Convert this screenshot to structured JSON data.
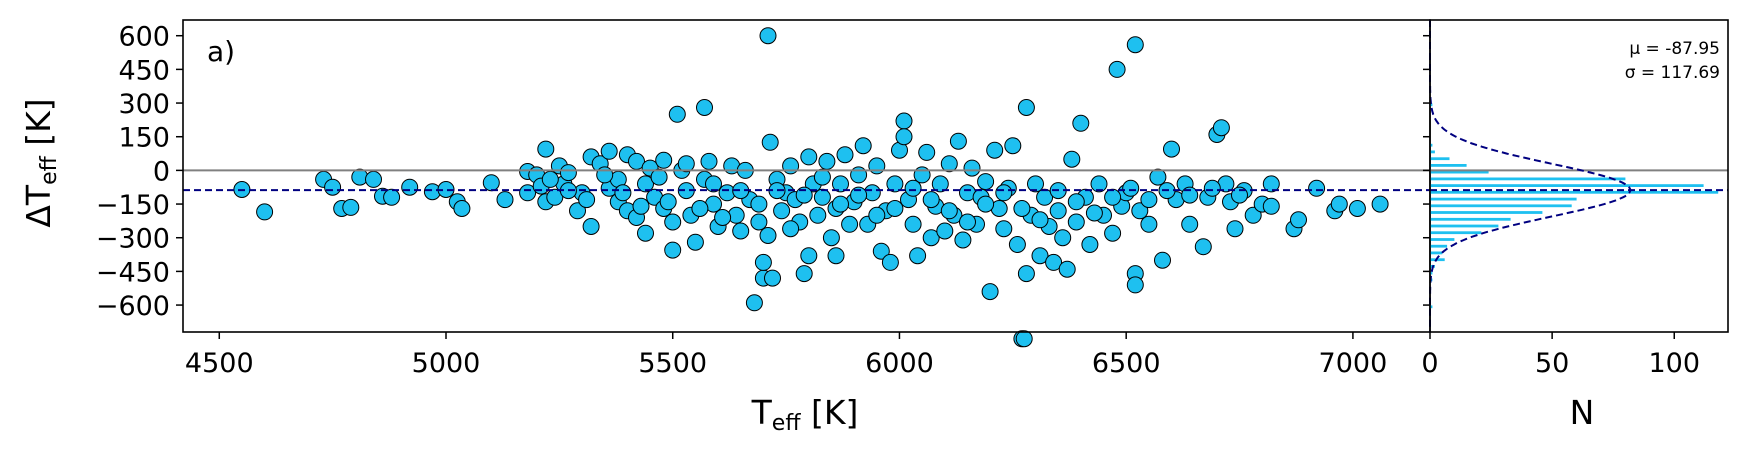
{
  "chart_data": [
    {
      "type": "scatter",
      "panel_label": "a)",
      "xlabel_main": "T",
      "xlabel_sub": "eff",
      "xlabel_unit": " [K]",
      "ylabel_main": "ΔT",
      "ylabel_sub": "eff",
      "ylabel_unit": " [K]",
      "xlim": [
        4420,
        7170
      ],
      "ylim": [
        -720,
        670
      ],
      "xticks": [
        4500,
        5000,
        5500,
        6000,
        6500,
        7000
      ],
      "xtick_labels": [
        "4500",
        "5000",
        "5500",
        "6000",
        "6500",
        "7000"
      ],
      "yticks": [
        -600,
        -450,
        -300,
        -150,
        0,
        150,
        300,
        450,
        600
      ],
      "ytick_labels": [
        "−600",
        "−450",
        "−300",
        "−150",
        "0",
        "150",
        "300",
        "450",
        "600"
      ],
      "reference_lines": [
        {
          "y": 0,
          "style": "solid",
          "color": "#808080"
        },
        {
          "y": -87.95,
          "style": "dashed",
          "color": "#000080"
        }
      ],
      "marker_color": "#1ec0f0",
      "grid": false,
      "points": [
        [
          4550,
          -85
        ],
        [
          4600,
          -185
        ],
        [
          4730,
          -40
        ],
        [
          4750,
          -75
        ],
        [
          4770,
          -170
        ],
        [
          4790,
          -165
        ],
        [
          4810,
          -30
        ],
        [
          4840,
          -40
        ],
        [
          4860,
          -115
        ],
        [
          4880,
          -120
        ],
        [
          4920,
          -75
        ],
        [
          4970,
          -95
        ],
        [
          5000,
          -85
        ],
        [
          5025,
          -140
        ],
        [
          5035,
          -170
        ],
        [
          5100,
          -55
        ],
        [
          5130,
          -130
        ],
        [
          5180,
          -5
        ],
        [
          5180,
          -100
        ],
        [
          5200,
          -20
        ],
        [
          5210,
          -70
        ],
        [
          5220,
          95
        ],
        [
          5220,
          -140
        ],
        [
          5240,
          -120
        ],
        [
          5250,
          20
        ],
        [
          5260,
          -60
        ],
        [
          5270,
          -10
        ],
        [
          5290,
          -180
        ],
        [
          5300,
          -100
        ],
        [
          5320,
          60
        ],
        [
          5320,
          -250
        ],
        [
          5340,
          30
        ],
        [
          5360,
          85
        ],
        [
          5360,
          -80
        ],
        [
          5380,
          -40
        ],
        [
          5380,
          -140
        ],
        [
          5400,
          70
        ],
        [
          5400,
          -180
        ],
        [
          5420,
          40
        ],
        [
          5420,
          -210
        ],
        [
          5440,
          -60
        ],
        [
          5440,
          -280
        ],
        [
          5450,
          10
        ],
        [
          5460,
          -120
        ],
        [
          5480,
          45
        ],
        [
          5480,
          -170
        ],
        [
          5500,
          -355
        ],
        [
          5500,
          -230
        ],
        [
          5510,
          250
        ],
        [
          5520,
          0
        ],
        [
          5530,
          -90
        ],
        [
          5540,
          -200
        ],
        [
          5550,
          -320
        ],
        [
          5570,
          280
        ],
        [
          5570,
          -40
        ],
        [
          5580,
          40
        ],
        [
          5590,
          -150
        ],
        [
          5600,
          -250
        ],
        [
          5620,
          -100
        ],
        [
          5630,
          20
        ],
        [
          5640,
          -200
        ],
        [
          5650,
          -270
        ],
        [
          5660,
          0
        ],
        [
          5670,
          -130
        ],
        [
          5680,
          -590
        ],
        [
          5690,
          -230
        ],
        [
          5700,
          -480
        ],
        [
          5700,
          -410
        ],
        [
          5710,
          600
        ],
        [
          5710,
          -290
        ],
        [
          5715,
          125
        ],
        [
          5720,
          -480
        ],
        [
          5730,
          -40
        ],
        [
          5740,
          -180
        ],
        [
          5750,
          -100
        ],
        [
          5760,
          20
        ],
        [
          5770,
          -130
        ],
        [
          5780,
          -230
        ],
        [
          5790,
          -460
        ],
        [
          5800,
          -380
        ],
        [
          5800,
          60
        ],
        [
          5810,
          -60
        ],
        [
          5820,
          -200
        ],
        [
          5830,
          -120
        ],
        [
          5840,
          40
        ],
        [
          5850,
          -300
        ],
        [
          5860,
          -380
        ],
        [
          5860,
          -170
        ],
        [
          5870,
          -60
        ],
        [
          5880,
          70
        ],
        [
          5890,
          -240
        ],
        [
          5900,
          -140
        ],
        [
          5910,
          -20
        ],
        [
          5920,
          110
        ],
        [
          5930,
          -240
        ],
        [
          5940,
          -100
        ],
        [
          5950,
          20
        ],
        [
          5960,
          -360
        ],
        [
          5970,
          -180
        ],
        [
          5980,
          -410
        ],
        [
          5990,
          -60
        ],
        [
          6000,
          90
        ],
        [
          6010,
          220
        ],
        [
          6010,
          150
        ],
        [
          6020,
          -130
        ],
        [
          6030,
          -240
        ],
        [
          6040,
          -380
        ],
        [
          6050,
          -20
        ],
        [
          6060,
          80
        ],
        [
          6070,
          -300
        ],
        [
          6080,
          -160
        ],
        [
          6090,
          -60
        ],
        [
          6100,
          -270
        ],
        [
          6110,
          30
        ],
        [
          6120,
          -200
        ],
        [
          6130,
          130
        ],
        [
          6140,
          -310
        ],
        [
          6150,
          -100
        ],
        [
          6160,
          10
        ],
        [
          6170,
          -240
        ],
        [
          6180,
          -120
        ],
        [
          6190,
          -50
        ],
        [
          6200,
          -540
        ],
        [
          6210,
          90
        ],
        [
          6220,
          -170
        ],
        [
          6230,
          -260
        ],
        [
          6240,
          -80
        ],
        [
          6250,
          110
        ],
        [
          6260,
          -330
        ],
        [
          6270,
          -750
        ],
        [
          6275,
          -750
        ],
        [
          6280,
          280
        ],
        [
          6280,
          -460
        ],
        [
          6290,
          -200
        ],
        [
          6300,
          -60
        ],
        [
          6310,
          -380
        ],
        [
          6320,
          -120
        ],
        [
          6330,
          -250
        ],
        [
          6340,
          -410
        ],
        [
          6350,
          -180
        ],
        [
          6360,
          -300
        ],
        [
          6370,
          -440
        ],
        [
          6380,
          50
        ],
        [
          6390,
          -230
        ],
        [
          6400,
          210
        ],
        [
          6410,
          -120
        ],
        [
          6420,
          -330
        ],
        [
          6440,
          -60
        ],
        [
          6450,
          -200
        ],
        [
          6470,
          -280
        ],
        [
          6480,
          450
        ],
        [
          6490,
          -160
        ],
        [
          6500,
          -100
        ],
        [
          6520,
          560
        ],
        [
          6520,
          -460
        ],
        [
          6520,
          -510
        ],
        [
          6530,
          -180
        ],
        [
          6550,
          -240
        ],
        [
          6570,
          -30
        ],
        [
          6580,
          -400
        ],
        [
          6600,
          95
        ],
        [
          6610,
          -130
        ],
        [
          6630,
          -60
        ],
        [
          6640,
          -240
        ],
        [
          6670,
          -340
        ],
        [
          6680,
          -120
        ],
        [
          6700,
          160
        ],
        [
          6710,
          190
        ],
        [
          6720,
          -60
        ],
        [
          6730,
          -140
        ],
        [
          6740,
          -260
        ],
        [
          6760,
          -90
        ],
        [
          6780,
          -200
        ],
        [
          6800,
          -150
        ],
        [
          6820,
          -60
        ],
        [
          6820,
          -160
        ],
        [
          6870,
          -260
        ],
        [
          6880,
          -220
        ],
        [
          6920,
          -80
        ],
        [
          6960,
          -180
        ],
        [
          6970,
          -150
        ],
        [
          7010,
          -170
        ],
        [
          7060,
          -150
        ],
        [
          5230,
          -40
        ],
        [
          5270,
          -90
        ],
        [
          5310,
          -130
        ],
        [
          5350,
          -20
        ],
        [
          5390,
          -100
        ],
        [
          5430,
          -160
        ],
        [
          5470,
          -30
        ],
        [
          5490,
          -140
        ],
        [
          5530,
          30
        ],
        [
          5560,
          -170
        ],
        [
          5590,
          -60
        ],
        [
          5610,
          -210
        ],
        [
          5650,
          -90
        ],
        [
          5690,
          -150
        ],
        [
          5730,
          -90
        ],
        [
          5760,
          -260
        ],
        [
          5790,
          -110
        ],
        [
          5830,
          -30
        ],
        [
          5870,
          -150
        ],
        [
          5910,
          -110
        ],
        [
          5950,
          -200
        ],
        [
          5990,
          -170
        ],
        [
          6030,
          -80
        ],
        [
          6070,
          -130
        ],
        [
          6110,
          -180
        ],
        [
          6150,
          -230
        ],
        [
          6190,
          -150
        ],
        [
          6230,
          -100
        ],
        [
          6270,
          -170
        ],
        [
          6310,
          -220
        ],
        [
          6350,
          -90
        ],
        [
          6390,
          -140
        ],
        [
          6430,
          -190
        ],
        [
          6470,
          -120
        ],
        [
          6510,
          -80
        ],
        [
          6550,
          -130
        ],
        [
          6590,
          -90
        ],
        [
          6640,
          -110
        ],
        [
          6690,
          -80
        ],
        [
          6750,
          -110
        ]
      ]
    },
    {
      "type": "bar",
      "orientation": "horizontal",
      "xlabel": "N",
      "xlim": [
        0,
        122
      ],
      "xticks": [
        0,
        50,
        100
      ],
      "xtick_labels": [
        "0",
        "50",
        "100"
      ],
      "ylim": [
        -720,
        670
      ],
      "stats_mu": "μ = -87.95",
      "stats_sigma": "σ = 117.69",
      "bin_width": 30,
      "bins": [
        {
          "y": 300,
          "count": 1
        },
        {
          "y": 120,
          "count": 1
        },
        {
          "y": 90,
          "count": 2
        },
        {
          "y": 60,
          "count": 8
        },
        {
          "y": 30,
          "count": 15
        },
        {
          "y": 0,
          "count": 24
        },
        {
          "y": -30,
          "count": 80
        },
        {
          "y": -60,
          "count": 112
        },
        {
          "y": -90,
          "count": 118
        },
        {
          "y": -120,
          "count": 60
        },
        {
          "y": -150,
          "count": 58
        },
        {
          "y": -180,
          "count": 46
        },
        {
          "y": -210,
          "count": 33
        },
        {
          "y": -240,
          "count": 28
        },
        {
          "y": -270,
          "count": 21
        },
        {
          "y": -300,
          "count": 10
        },
        {
          "y": -330,
          "count": 7
        },
        {
          "y": -360,
          "count": 5
        },
        {
          "y": -390,
          "count": 6
        },
        {
          "y": -420,
          "count": 2
        },
        {
          "y": -450,
          "count": 1
        },
        {
          "y": -480,
          "count": 1
        },
        {
          "y": -600,
          "count": 1
        }
      ],
      "gaussian": {
        "mu": -87.95,
        "sigma": 117.69,
        "peak": 82
      },
      "reference_lines": [
        {
          "y": 0,
          "style": "solid",
          "color": "#808080"
        },
        {
          "y": -87.95,
          "style": "dashed",
          "color": "#000080"
        }
      ]
    }
  ]
}
